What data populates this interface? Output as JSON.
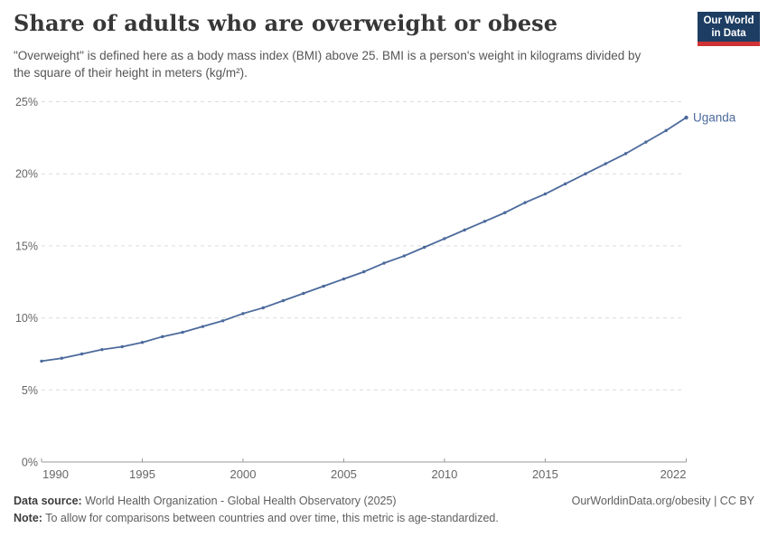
{
  "header": {
    "title": "Share of adults who are overweight or obese",
    "subtitle": "\"Overweight\" is defined here as a body mass index (BMI) above 25. BMI is a person's weight in kilograms divided by the square of their height in meters (kg/m²).",
    "logo": {
      "line1": "Our World",
      "line2": "in Data",
      "bg": "#1d3d63",
      "accent": "#cf3235"
    }
  },
  "chart_data": {
    "type": "line",
    "title": "Share of adults who are overweight or obese",
    "xlabel": "",
    "ylabel": "",
    "unit": "%",
    "x": [
      1990,
      1991,
      1992,
      1993,
      1994,
      1995,
      1996,
      1997,
      1998,
      1999,
      2000,
      2001,
      2002,
      2003,
      2004,
      2005,
      2006,
      2007,
      2008,
      2009,
      2010,
      2011,
      2012,
      2013,
      2014,
      2015,
      2016,
      2017,
      2018,
      2019,
      2020,
      2021,
      2022
    ],
    "series": [
      {
        "name": "Uganda",
        "color": "#4c6a9c",
        "end_label": "Uganda",
        "values": [
          7.0,
          7.2,
          7.5,
          7.8,
          8.0,
          8.3,
          8.7,
          9.0,
          9.4,
          9.8,
          10.3,
          10.7,
          11.2,
          11.7,
          12.2,
          12.7,
          13.2,
          13.8,
          14.3,
          14.9,
          15.5,
          16.1,
          16.7,
          17.3,
          18.0,
          18.6,
          19.3,
          20.0,
          20.7,
          21.4,
          22.2,
          23.0,
          23.9
        ]
      }
    ],
    "xlim": [
      1990,
      2022
    ],
    "ylim": [
      0,
      25
    ],
    "x_ticks": [
      1990,
      1995,
      2000,
      2005,
      2010,
      2015,
      2022
    ],
    "x_tick_labels": [
      "1990",
      "1995",
      "2000",
      "2005",
      "2010",
      "2015",
      "2022"
    ],
    "y_ticks": [
      0,
      5,
      10,
      15,
      20,
      25
    ],
    "y_tick_labels": [
      "0%",
      "5%",
      "10%",
      "15%",
      "20%",
      "25%"
    ],
    "grid": "horizontal-dashed",
    "legend": "end-of-line-label"
  },
  "footer": {
    "datasource_label": "Data source:",
    "datasource_text": "World Health Organization - Global Health Observatory (2025)",
    "note_label": "Note:",
    "note_text": "To allow for comparisons between countries and over time, this metric is age-standardized.",
    "link": "OurWorldinData.org/obesity | CC BY"
  }
}
